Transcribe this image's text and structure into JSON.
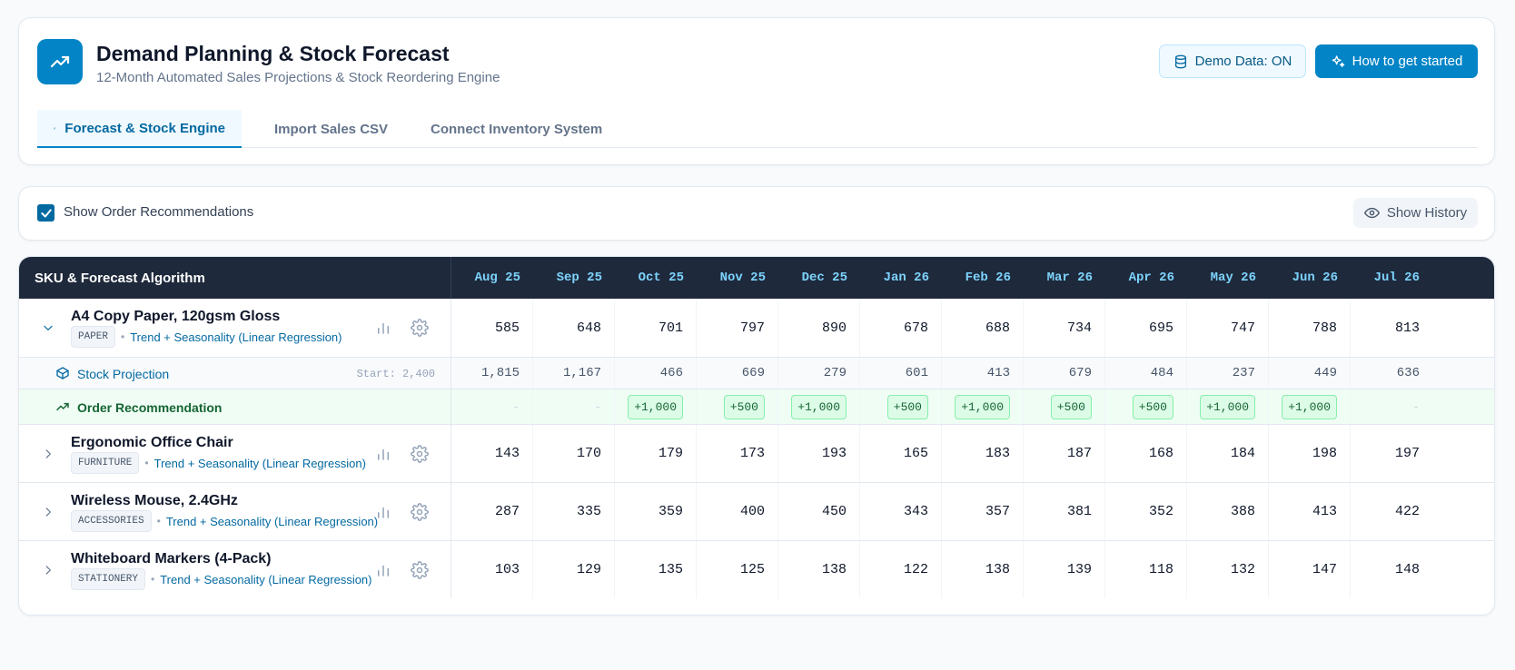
{
  "app": {
    "title": "Demand Planning & Stock Forecast",
    "subtitle": "12-Month Automated Sales Projections & Stock Reordering Engine",
    "icon": "trending-up-icon"
  },
  "header_buttons": {
    "demo_label": "Demo Data: ON",
    "start_label": "How to get started"
  },
  "tabs": [
    {
      "label": "Forecast & Stock Engine",
      "icon": "layers-icon",
      "active": true
    },
    {
      "label": "Import Sales CSV",
      "icon": "upload-icon",
      "active": false
    },
    {
      "label": "Connect Inventory System",
      "icon": "plug-icon",
      "active": false
    }
  ],
  "toolbar": {
    "show_recommendations_label": "Show Order Recommendations",
    "show_recommendations_checked": true,
    "history_label": "Show History"
  },
  "table": {
    "header_label": "SKU & Forecast Algorithm",
    "months": [
      "Aug 25",
      "Sep 25",
      "Oct 25",
      "Nov 25",
      "Dec 25",
      "Jan 26",
      "Feb 26",
      "Mar 26",
      "Apr 26",
      "May 26",
      "Jun 26",
      "Jul 26"
    ],
    "skus": [
      {
        "name": "A4 Copy Paper, 120gsm Gloss",
        "category": "PAPER",
        "algorithm": "Trend + Seasonality (Linear Regression)",
        "expanded": true,
        "values": [
          "585",
          "648",
          "701",
          "797",
          "890",
          "678",
          "688",
          "734",
          "695",
          "747",
          "788",
          "813"
        ],
        "stock_projection": {
          "label": "Stock Projection",
          "start": "Start: 2,400",
          "values": [
            "1,815",
            "1,167",
            "466",
            "669",
            "279",
            "601",
            "413",
            "679",
            "484",
            "237",
            "449",
            "636"
          ]
        },
        "order_recommendation": {
          "label": "Order Recommendation",
          "values": [
            "-",
            "-",
            "+1,000",
            "+500",
            "+1,000",
            "+500",
            "+1,000",
            "+500",
            "+500",
            "+1,000",
            "+1,000",
            "-"
          ]
        }
      },
      {
        "name": "Ergonomic Office Chair",
        "category": "FURNITURE",
        "algorithm": "Trend + Seasonality (Linear Regression)",
        "expanded": false,
        "values": [
          "143",
          "170",
          "179",
          "173",
          "193",
          "165",
          "183",
          "187",
          "168",
          "184",
          "198",
          "197"
        ]
      },
      {
        "name": "Wireless Mouse, 2.4GHz",
        "category": "ACCESSORIES",
        "algorithm": "Trend + Seasonality (Linear Regression)",
        "expanded": false,
        "values": [
          "287",
          "335",
          "359",
          "400",
          "450",
          "343",
          "357",
          "381",
          "352",
          "388",
          "413",
          "422"
        ]
      },
      {
        "name": "Whiteboard Markers (4-Pack)",
        "category": "STATIONERY",
        "algorithm": "Trend + Seasonality (Linear Regression)",
        "expanded": false,
        "values": [
          "103",
          "129",
          "135",
          "125",
          "138",
          "122",
          "138",
          "139",
          "118",
          "132",
          "147",
          "148"
        ]
      }
    ]
  },
  "colors": {
    "accent": "#0284c7",
    "table_header_bg": "#1e293b",
    "month_text": "#7dd3fc",
    "recommendation_bg": "#f0fdf4",
    "recommendation_text": "#166534"
  }
}
